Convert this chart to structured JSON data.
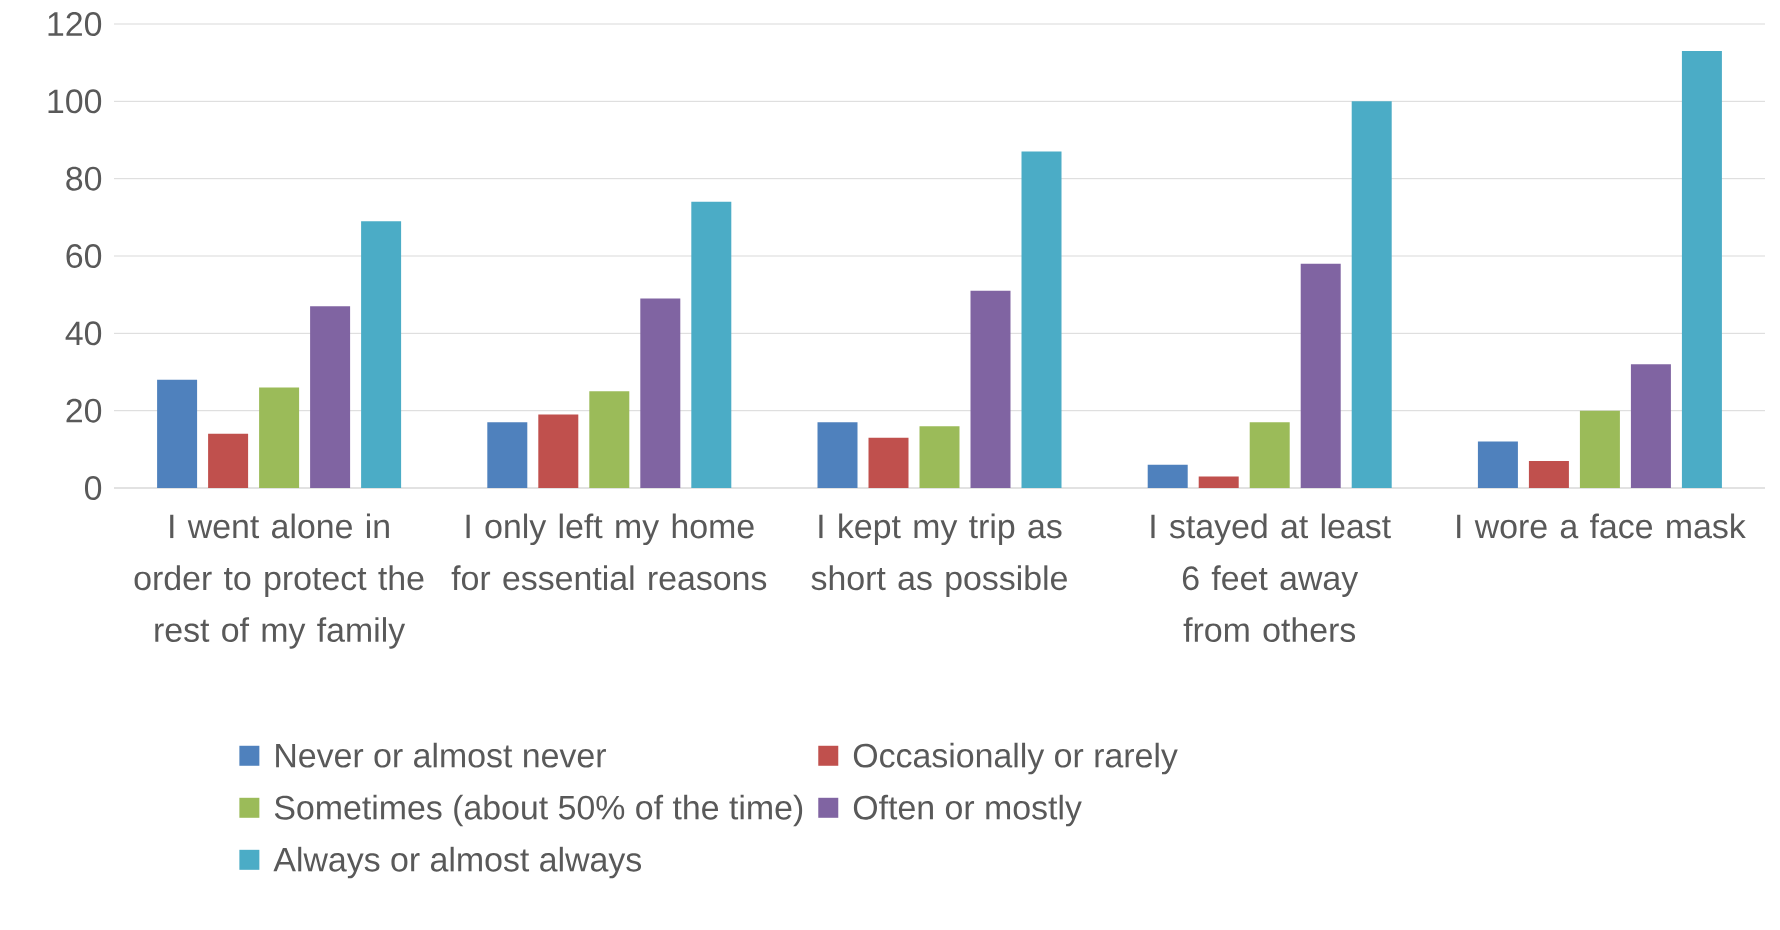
{
  "chart_data": {
    "type": "bar",
    "categories": [
      "I went alone in order to protect the rest of my family",
      "I only left my home for essential reasons",
      "I kept my trip as short as possible",
      "I stayed at least 6 feet away from others",
      "I wore a face mask"
    ],
    "series": [
      {
        "name": "Never or almost never",
        "color": "#4f81bd",
        "values": [
          28,
          17,
          17,
          6,
          12
        ]
      },
      {
        "name": "Occasionally or rarely",
        "color": "#c0504d",
        "values": [
          14,
          19,
          13,
          3,
          7
        ]
      },
      {
        "name": "Sometimes (about 50% of the time)",
        "color": "#9bbb59",
        "values": [
          26,
          25,
          16,
          17,
          20
        ]
      },
      {
        "name": "Often or mostly",
        "color": "#8064a2",
        "values": [
          47,
          49,
          51,
          58,
          32
        ]
      },
      {
        "name": "Always or almost always",
        "color": "#4bacc6",
        "values": [
          69,
          74,
          87,
          100,
          113
        ]
      }
    ],
    "ylim": [
      0,
      120
    ],
    "yticks": [
      0,
      20,
      40,
      60,
      80,
      100,
      120
    ],
    "grid": "y",
    "legend": "bottom"
  }
}
